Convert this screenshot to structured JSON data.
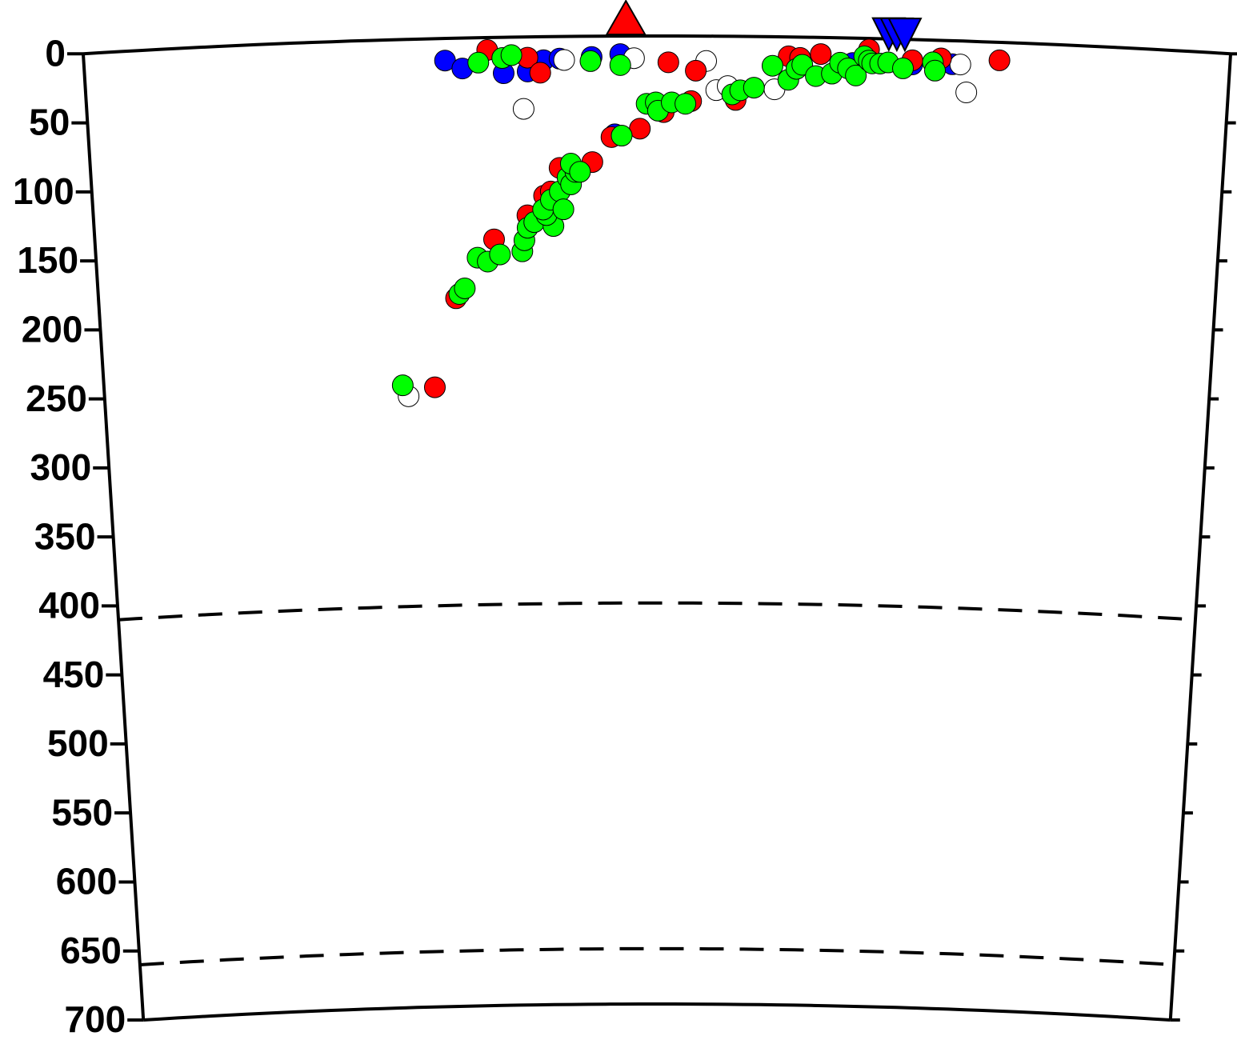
{
  "chart_data": {
    "type": "scatter",
    "xlim": [
      0,
      100
    ],
    "ylim": [
      0,
      700
    ],
    "yticks": [
      0,
      50,
      100,
      150,
      200,
      250,
      300,
      350,
      400,
      450,
      500,
      550,
      600,
      650,
      700
    ],
    "reference_depths": [
      410,
      660
    ],
    "volcanoes": {
      "x": [
        47.3
      ],
      "color": "#ff0000"
    },
    "stations": {
      "x": [
        70.2,
        70.9,
        71.6
      ],
      "color": "#0000ff"
    },
    "series": [
      {
        "color": "#0000ff",
        "x": [
          31.5,
          33.0,
          36.6,
          38.7,
          40.1,
          41.5,
          44.3,
          46.8,
          67.1,
          72.3,
          75.8,
          46.3
        ],
        "values": [
          16,
          22,
          26,
          25,
          17,
          16,
          15,
          13,
          18,
          18,
          17,
          71
        ]
      },
      {
        "color": "#ffffff",
        "x": [
          38.3,
          41.9,
          48.0,
          54.3,
          55.2,
          56.2,
          60.3,
          76.5,
          77.1,
          27.5
        ],
        "values": [
          52,
          17,
          16,
          18,
          39,
          36,
          38,
          17,
          37,
          258
        ]
      },
      {
        "color": "#ff0000",
        "x": [
          35.2,
          38.7,
          39.8,
          51.0,
          53.4,
          29.9,
          32.0,
          35.5,
          38.5,
          40.0,
          40.6,
          41.4,
          44.3,
          46.0,
          48.5,
          50.6,
          53.0,
          56.9,
          61.5,
          62.5,
          64.3,
          68.5,
          72.3,
          74.8,
          79.9
        ],
        "values": [
          9,
          15,
          26,
          19,
          25,
          252,
          188,
          146,
          129,
          115,
          112,
          95,
          91,
          73,
          67,
          55,
          47,
          46,
          14,
          15,
          12,
          8,
          15,
          13,
          13
        ]
      },
      {
        "color": "#00ff00",
        "x": [
          34.4,
          36.5,
          37.3,
          44.2,
          46.8,
          46.9,
          27.0,
          32.3,
          32.8,
          34.0,
          34.9,
          36.0,
          38.0,
          38.2,
          38.5,
          39.1,
          40.8,
          40.2,
          39.9,
          40.6,
          41.4,
          41.7,
          42.1,
          42.4,
          42.8,
          42.4,
          43.2,
          49.1,
          49.9,
          50.1,
          51.3,
          52.5,
          56.6,
          57.3,
          58.5,
          60.1,
          61.5,
          62.2,
          62.7,
          63.9,
          65.3,
          66.0,
          66.7,
          67.4,
          68.1,
          68.5,
          68.8,
          69.5,
          70.2,
          71.5,
          74.1,
          74.3
        ],
        "values": [
          18,
          15,
          13,
          18,
          21,
          72,
          250,
          185,
          181,
          159,
          162,
          157,
          155,
          147,
          138,
          134,
          137,
          129,
          125,
          118,
          112,
          125,
          102,
          107,
          98,
          92,
          98,
          49,
          48,
          54,
          48,
          49,
          42,
          39,
          37,
          21,
          31,
          23,
          20,
          28,
          26,
          18,
          22,
          27,
          13,
          16,
          18,
          18,
          17,
          21,
          16,
          22
        ]
      }
    ]
  }
}
